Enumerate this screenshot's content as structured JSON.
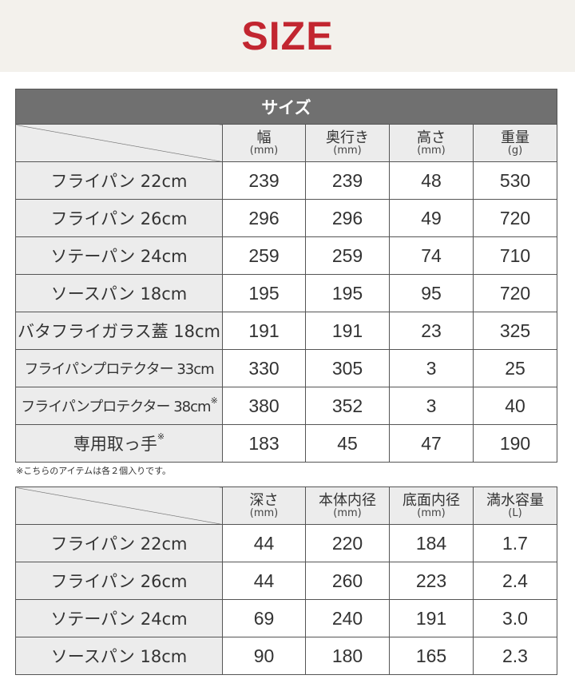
{
  "banner": {
    "title": "SIZE",
    "title_color": "#c22630"
  },
  "table1": {
    "title": "サイズ",
    "columns": [
      {
        "label": "幅",
        "unit": "(mm)"
      },
      {
        "label": "奥行き",
        "unit": "(mm)"
      },
      {
        "label": "高さ",
        "unit": "(mm)"
      },
      {
        "label": "重量",
        "unit": "(g)"
      }
    ],
    "rows": [
      {
        "name": "フライパン 22cm",
        "mark": "",
        "values": [
          "239",
          "239",
          "48",
          "530"
        ]
      },
      {
        "name": "フライパン 26cm",
        "mark": "",
        "values": [
          "296",
          "296",
          "49",
          "720"
        ]
      },
      {
        "name": "ソテーパン 24cm",
        "mark": "",
        "values": [
          "259",
          "259",
          "74",
          "710"
        ]
      },
      {
        "name": "ソースパン 18cm",
        "mark": "",
        "values": [
          "195",
          "195",
          "95",
          "720"
        ]
      },
      {
        "name": "バタフライガラス蓋 18cm",
        "mark": "",
        "values": [
          "191",
          "191",
          "23",
          "325"
        ]
      },
      {
        "name": "フライパンプロテクター 33cm",
        "mark": "",
        "values": [
          "330",
          "305",
          "3",
          "25"
        ]
      },
      {
        "name": "フライパンプロテクター 38cm",
        "mark": "※",
        "values": [
          "380",
          "352",
          "3",
          "40"
        ]
      },
      {
        "name": "専用取っ手",
        "mark": "※",
        "values": [
          "183",
          "45",
          "47",
          "190"
        ]
      }
    ]
  },
  "note": "※こちらのアイテムは各２個入りです。",
  "table2": {
    "columns": [
      {
        "label": "深さ",
        "unit": "(mm)"
      },
      {
        "label": "本体内径",
        "unit": "(mm)"
      },
      {
        "label": "底面内径",
        "unit": "(mm)"
      },
      {
        "label": "満水容量",
        "unit": "(L)"
      }
    ],
    "rows": [
      {
        "name": "フライパン 22cm",
        "mark": "",
        "values": [
          "44",
          "220",
          "184",
          "1.7"
        ]
      },
      {
        "name": "フライパン 26cm",
        "mark": "",
        "values": [
          "44",
          "260",
          "223",
          "2.4"
        ]
      },
      {
        "name": "ソテーパン 24cm",
        "mark": "",
        "values": [
          "69",
          "240",
          "191",
          "3.0"
        ]
      },
      {
        "name": "ソースパン 18cm",
        "mark": "",
        "values": [
          "90",
          "180",
          "165",
          "2.3"
        ]
      }
    ]
  }
}
